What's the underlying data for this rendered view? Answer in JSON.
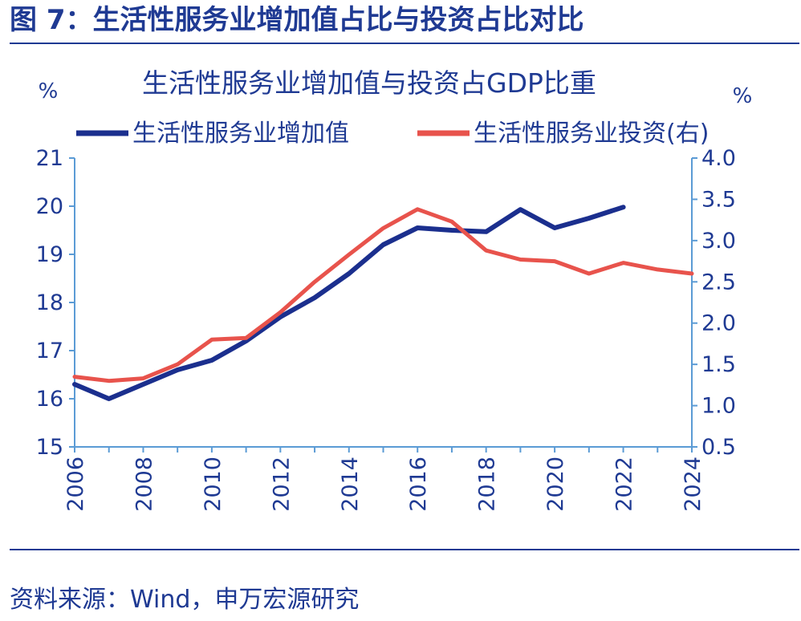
{
  "figure_title": "图 7：生活性服务业增加值占比与投资占比对比",
  "source": "资料来源：Wind，申万宏源研究",
  "colors": {
    "brand": "#1f3a93",
    "axis": "#5b9bd5",
    "series1": "#1b2f8e",
    "series2": "#e8534c"
  },
  "chart_data": {
    "type": "line",
    "title": "生活性服务业增加值与投资占GDP比重",
    "ylabel": "%",
    "y2label": "%",
    "x": [
      2006,
      2007,
      2008,
      2009,
      2010,
      2011,
      2012,
      2013,
      2014,
      2015,
      2016,
      2017,
      2018,
      2019,
      2020,
      2021,
      2022,
      2023,
      2024
    ],
    "xticks": [
      "2006",
      "2008",
      "2010",
      "2012",
      "2014",
      "2016",
      "2018",
      "2020",
      "2022",
      "2024"
    ],
    "ylim": [
      15,
      21
    ],
    "yticks": [
      "15",
      "16",
      "17",
      "18",
      "19",
      "20",
      "21"
    ],
    "y2lim": [
      0.5,
      4.0
    ],
    "y2ticks": [
      "0.5",
      "1.0",
      "1.5",
      "2.0",
      "2.5",
      "3.0",
      "3.5",
      "4.0"
    ],
    "grid": false,
    "legend": "top",
    "series": [
      {
        "name": "生活性服务业增加值",
        "axis": "left",
        "color": "#1b2f8e",
        "x": [
          2006,
          2007,
          2008,
          2009,
          2010,
          2011,
          2012,
          2013,
          2014,
          2015,
          2016,
          2017,
          2018,
          2019,
          2020,
          2021,
          2022
        ],
        "values": [
          16.3,
          16.0,
          16.3,
          16.6,
          16.8,
          17.2,
          17.7,
          18.1,
          18.6,
          19.2,
          19.55,
          19.5,
          19.47,
          19.93,
          19.55,
          19.75,
          19.98
        ]
      },
      {
        "name": "生活性服务业投资(右)",
        "axis": "right",
        "color": "#e8534c",
        "x": [
          2006,
          2007,
          2008,
          2009,
          2010,
          2011,
          2012,
          2013,
          2014,
          2015,
          2016,
          2017,
          2018,
          2019,
          2020,
          2021,
          2022,
          2023,
          2024
        ],
        "values": [
          1.35,
          1.3,
          1.33,
          1.5,
          1.8,
          1.82,
          2.13,
          2.5,
          2.83,
          3.15,
          3.38,
          3.23,
          2.88,
          2.77,
          2.75,
          2.6,
          2.73,
          2.65,
          2.6
        ]
      }
    ]
  }
}
